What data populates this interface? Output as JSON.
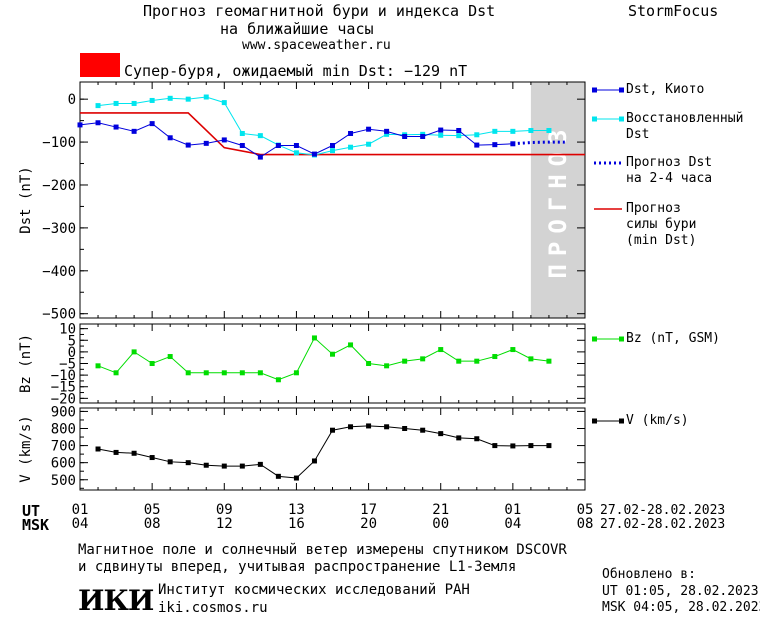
{
  "header": {
    "title_line1": "Прогноз геомагнитной бури и индекса Dst",
    "title_line2": "на ближайшие часы",
    "site": "www.spaceweather.ru",
    "brand": "StormFocus",
    "storm_label": "Супер-буря, ожидаемый min Dst: −129 nT",
    "storm_color": "#ff0000"
  },
  "legend": {
    "dst_kyoto": "Dst, Киото",
    "dst_restored_1": "Восстановленный",
    "dst_restored_2": "Dst",
    "dst_forecast_1": "Прогноз Dst",
    "dst_forecast_2": "на 2-4 часа",
    "storm_force_1": "Прогноз",
    "storm_force_2": "силы бури",
    "storm_force_3": "(min Dst)",
    "bz": "Bz (nT, GSM)",
    "v": "V (km/s)"
  },
  "forecast_band_label": "ПРОГНОЗ",
  "time_axis": {
    "ut_label": "UT",
    "msk_label": "MSK",
    "ut_ticks": [
      "01",
      "05",
      "09",
      "13",
      "17",
      "21",
      "01",
      "05"
    ],
    "msk_ticks": [
      "04",
      "08",
      "12",
      "16",
      "20",
      "00",
      "04",
      "08"
    ],
    "ut_range": "27.02-28.02.2023",
    "msk_range": "27.02-28.02.2023"
  },
  "footer": {
    "note_line1": "Магнитное поле и солнечный ветер измерены спутником DSCOVR",
    "note_line2": "и сдвинуты вперед, учитывая распространение L1-Земля",
    "institute": "Институт космических исследований РАН",
    "institute_site": "iki.cosmos.ru",
    "logo_text": "ИКИ",
    "updated_label": "Обновлено в:",
    "updated_ut": "UT  01:05, 28.02.2023",
    "updated_msk": "MSK 04:05, 28.02.2023"
  },
  "colors": {
    "dst": "#0000dd",
    "restored": "#00e5ee",
    "forecast": "#0000dd",
    "storm": "#dd0000",
    "bz": "#00dd00",
    "v": "#000000",
    "forecast_band": "#d3d3d3"
  },
  "chart_data": [
    {
      "type": "line",
      "ylabel": "Dst (nT)",
      "ylim": [
        -510,
        40
      ],
      "yticks": [
        0,
        -100,
        -200,
        -300,
        -400,
        -500
      ],
      "x_hours_range": [
        0,
        28
      ],
      "forecast_start_hour": 25,
      "series": [
        {
          "name": "Dst, Киото",
          "x": [
            0,
            1,
            2,
            3,
            4,
            5,
            6,
            7,
            8,
            9,
            10,
            11,
            12,
            13,
            14,
            15,
            16,
            17,
            18,
            19,
            20,
            21,
            22,
            23,
            24
          ],
          "values": [
            -60,
            -55,
            -65,
            -75,
            -57,
            -90,
            -107,
            -103,
            -95,
            -108,
            -135,
            -108,
            -108,
            -128,
            -108,
            -80,
            -70,
            -75,
            -87,
            -87,
            -72,
            -73,
            -107,
            -106,
            -104
          ]
        },
        {
          "name": "Восстановленный Dst",
          "x": [
            1,
            2,
            3,
            4,
            5,
            6,
            7,
            8,
            9,
            10,
            11,
            12,
            13,
            14,
            15,
            16,
            17,
            18,
            19,
            20,
            21,
            22,
            23,
            24,
            25,
            26
          ],
          "values": [
            -15,
            -10,
            -10,
            -3,
            2,
            0,
            5,
            -8,
            -80,
            -85,
            -107,
            -125,
            -130,
            -120,
            -112,
            -105,
            -82,
            -83,
            -82,
            -84,
            -85,
            -83,
            -75,
            -75,
            -73,
            -73
          ]
        },
        {
          "name": "Прогноз Dst на 2-4 часа",
          "x": [
            24,
            25,
            26,
            27
          ],
          "values": [
            -104,
            -101,
            -100,
            -100
          ]
        },
        {
          "name": "Прогноз силы бури (min Dst)",
          "x": [
            0,
            6,
            8,
            10,
            28
          ],
          "values": [
            -32,
            -32,
            -113,
            -129,
            -129
          ]
        }
      ]
    },
    {
      "type": "line",
      "ylabel": "Bz (nT)",
      "ylim": [
        -22,
        12
      ],
      "yticks": [
        10,
        5,
        0,
        -5,
        -10,
        -15,
        -20
      ],
      "series": [
        {
          "name": "Bz (nT, GSM)",
          "x": [
            1,
            2,
            3,
            4,
            5,
            6,
            7,
            8,
            9,
            10,
            11,
            12,
            13,
            14,
            15,
            16,
            17,
            18,
            19,
            20,
            21,
            22,
            23,
            24,
            25,
            26
          ],
          "values": [
            -6,
            -9,
            0,
            -5,
            -2,
            -9,
            -9,
            -9,
            -9,
            -9,
            -12,
            -9,
            6,
            -1,
            3,
            -5,
            -6,
            -4,
            -3,
            1,
            -4,
            -4,
            -2,
            1,
            -3,
            -4
          ]
        }
      ]
    },
    {
      "type": "line",
      "ylabel": "V (km/s)",
      "ylim": [
        440,
        920
      ],
      "yticks": [
        900,
        800,
        700,
        600,
        500
      ],
      "series": [
        {
          "name": "V (km/s)",
          "x": [
            1,
            2,
            3,
            4,
            5,
            6,
            7,
            8,
            9,
            10,
            11,
            12,
            13,
            14,
            15,
            16,
            17,
            18,
            19,
            20,
            21,
            22,
            23,
            24,
            25,
            26
          ],
          "values": [
            680,
            660,
            655,
            630,
            605,
            600,
            585,
            580,
            580,
            590,
            520,
            510,
            610,
            790,
            810,
            815,
            810,
            800,
            790,
            770,
            745,
            740,
            700,
            698,
            700,
            700
          ]
        }
      ]
    }
  ]
}
